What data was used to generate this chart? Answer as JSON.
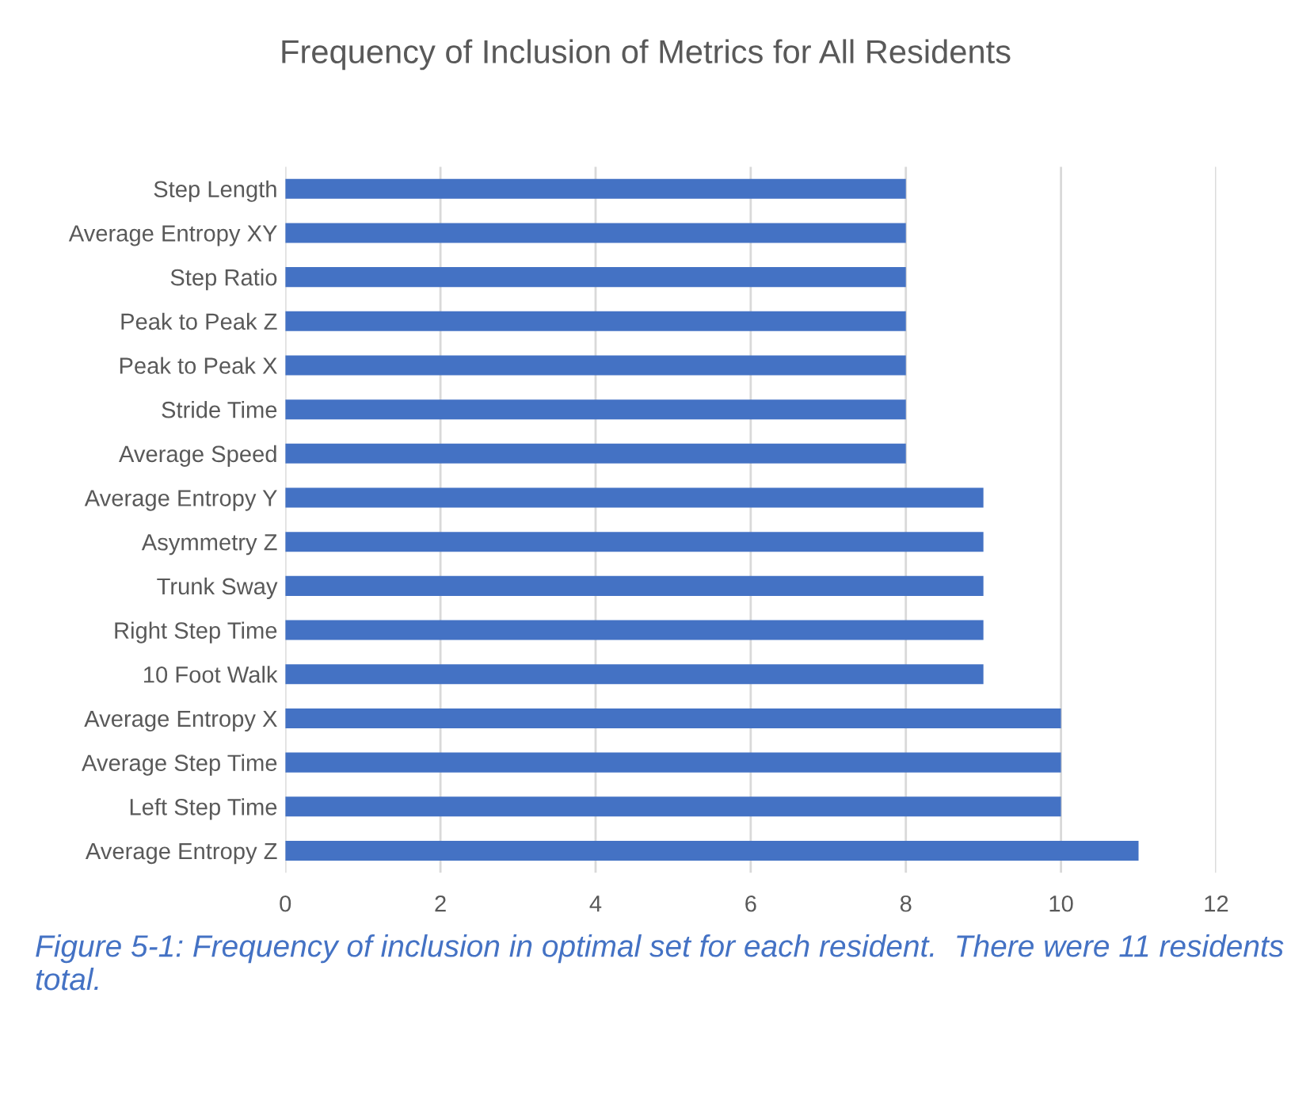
{
  "chart_data": {
    "type": "bar",
    "orientation": "horizontal",
    "title": "Frequency of Inclusion of Metrics for All Residents",
    "categories": [
      "Step Length",
      "Average Entropy XY",
      "Step Ratio",
      "Peak to Peak Z",
      "Peak to Peak X",
      "Stride Time",
      "Average Speed",
      "Average Entropy Y",
      "Asymmetry Z",
      "Trunk Sway",
      "Right Step Time",
      "10 Foot Walk",
      "Average Entropy X",
      "Average Step Time",
      "Left Step Time",
      "Average Entropy Z"
    ],
    "values": [
      8,
      8,
      8,
      8,
      8,
      8,
      8,
      9,
      9,
      9,
      9,
      9,
      10,
      10,
      10,
      11
    ],
    "color": "#4472c4",
    "xlim": [
      0,
      12
    ],
    "xticks": [
      0,
      2,
      4,
      6,
      8,
      10,
      12
    ],
    "grid": "x",
    "legend": false,
    "annotations": [
      "Figure 5-1: Frequency of inclusion in optimal set for each resident.  There were 11 residents total."
    ]
  }
}
